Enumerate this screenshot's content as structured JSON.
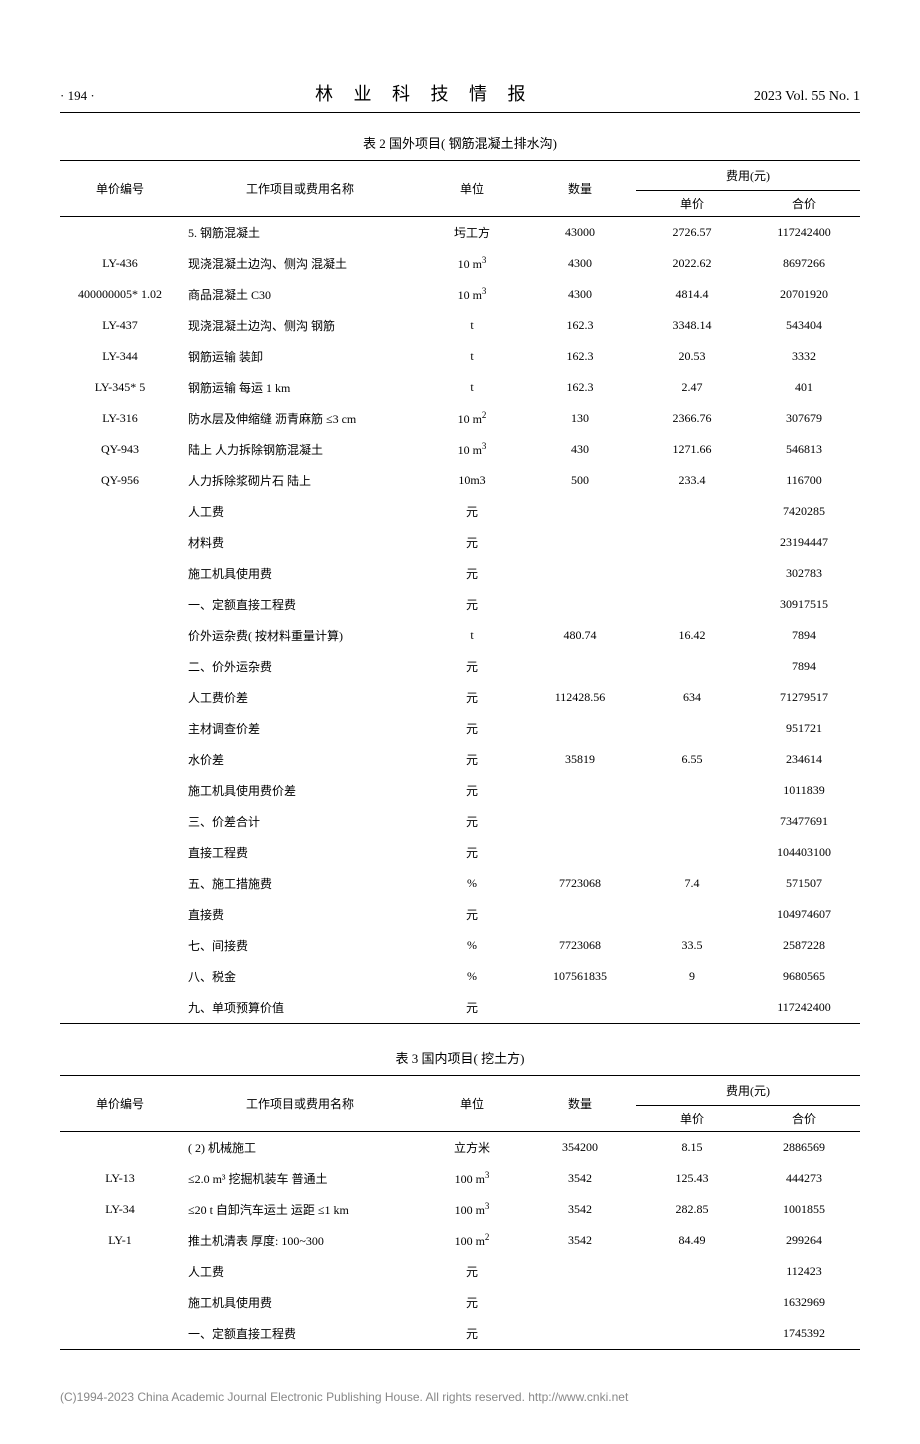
{
  "header": {
    "page_num": "· 194 ·",
    "journal_title": "林 业 科 技 情 报",
    "issue_info": "2023 Vol. 55 No. 1"
  },
  "table2": {
    "caption": "表 2  国外项目( 钢筋混凝土排水沟)",
    "headers": {
      "code": "单价编号",
      "name": "工作项目或费用名称",
      "unit": "单位",
      "qty": "数量",
      "cost_group": "费用(元)",
      "unit_price": "单价",
      "total": "合价"
    },
    "rows": [
      {
        "code": "",
        "name": "5. 钢筋混凝土",
        "unit": "圬工方",
        "qty": "43000",
        "price": "2726.57",
        "total": "117242400"
      },
      {
        "code": "LY-436",
        "name": "现浇混凝土边沟、侧沟 混凝土",
        "unit": "10 m³",
        "qty": "4300",
        "price": "2022.62",
        "total": "8697266"
      },
      {
        "code": "400000005* 1.02",
        "name": "商品混凝土 C30",
        "unit": "10 m³",
        "qty": "4300",
        "price": "4814.4",
        "total": "20701920"
      },
      {
        "code": "LY-437",
        "name": "现浇混凝土边沟、侧沟 钢筋",
        "unit": "t",
        "qty": "162.3",
        "price": "3348.14",
        "total": "543404"
      },
      {
        "code": "LY-344",
        "name": "钢筋运输 装卸",
        "unit": "t",
        "qty": "162.3",
        "price": "20.53",
        "total": "3332"
      },
      {
        "code": "LY-345* 5",
        "name": "钢筋运输 每运 1 km",
        "unit": "t",
        "qty": "162.3",
        "price": "2.47",
        "total": "401"
      },
      {
        "code": "LY-316",
        "name": "防水层及伸缩缝 沥青麻筋 ≤3 cm",
        "unit": "10 m²",
        "qty": "130",
        "price": "2366.76",
        "total": "307679"
      },
      {
        "code": "QY-943",
        "name": "陆上 人力拆除钢筋混凝土",
        "unit": "10 m³",
        "qty": "430",
        "price": "1271.66",
        "total": "546813"
      },
      {
        "code": "QY-956",
        "name": "人力拆除浆砌片石 陆上",
        "unit": "10m3",
        "qty": "500",
        "price": "233.4",
        "total": "116700"
      },
      {
        "code": "",
        "name": "人工费",
        "unit": "元",
        "qty": "",
        "price": "",
        "total": "7420285"
      },
      {
        "code": "",
        "name": "材料费",
        "unit": "元",
        "qty": "",
        "price": "",
        "total": "23194447"
      },
      {
        "code": "",
        "name": "施工机具使用费",
        "unit": "元",
        "qty": "",
        "price": "",
        "total": "302783"
      },
      {
        "code": "",
        "name": "一、定额直接工程费",
        "unit": "元",
        "qty": "",
        "price": "",
        "total": "30917515"
      },
      {
        "code": "",
        "name": "价外运杂费( 按材料重量计算)",
        "unit": "t",
        "qty": "480.74",
        "price": "16.42",
        "total": "7894"
      },
      {
        "code": "",
        "name": "二、价外运杂费",
        "unit": "元",
        "qty": "",
        "price": "",
        "total": "7894"
      },
      {
        "code": "",
        "name": "人工费价差",
        "unit": "元",
        "qty": "112428.56",
        "price": "634",
        "total": "71279517"
      },
      {
        "code": "",
        "name": "主材调查价差",
        "unit": "元",
        "qty": "",
        "price": "",
        "total": "951721"
      },
      {
        "code": "",
        "name": "水价差",
        "unit": "元",
        "qty": "35819",
        "price": "6.55",
        "total": "234614"
      },
      {
        "code": "",
        "name": "施工机具使用费价差",
        "unit": "元",
        "qty": "",
        "price": "",
        "total": "1011839"
      },
      {
        "code": "",
        "name": "三、价差合计",
        "unit": "元",
        "qty": "",
        "price": "",
        "total": "73477691"
      },
      {
        "code": "",
        "name": "直接工程费",
        "unit": "元",
        "qty": "",
        "price": "",
        "total": "104403100"
      },
      {
        "code": "",
        "name": "五、施工措施费",
        "unit": "%",
        "qty": "7723068",
        "price": "7.4",
        "total": "571507"
      },
      {
        "code": "",
        "name": "直接费",
        "unit": "元",
        "qty": "",
        "price": "",
        "total": "104974607"
      },
      {
        "code": "",
        "name": "七、间接费",
        "unit": "%",
        "qty": "7723068",
        "price": "33.5",
        "total": "2587228"
      },
      {
        "code": "",
        "name": "八、税金",
        "unit": "%",
        "qty": "107561835",
        "price": "9",
        "total": "9680565"
      },
      {
        "code": "",
        "name": "九、单项预算价值",
        "unit": "元",
        "qty": "",
        "price": "",
        "total": "117242400"
      }
    ]
  },
  "table3": {
    "caption": "表 3  国内项目( 挖土方)",
    "headers": {
      "code": "单价编号",
      "name": "工作项目或费用名称",
      "unit": "单位",
      "qty": "数量",
      "cost_group": "费用(元)",
      "unit_price": "单价",
      "total": "合价"
    },
    "rows": [
      {
        "code": "",
        "name": "( 2) 机械施工",
        "unit": "立方米",
        "qty": "354200",
        "price": "8.15",
        "total": "2886569"
      },
      {
        "code": "LY-13",
        "name": "≤2.0 m³ 挖掘机装车 普通土",
        "unit": "100 m³",
        "qty": "3542",
        "price": "125.43",
        "total": "444273"
      },
      {
        "code": "LY-34",
        "name": "≤20 t 自卸汽车运土 运距 ≤1 km",
        "unit": "100 m³",
        "qty": "3542",
        "price": "282.85",
        "total": "1001855"
      },
      {
        "code": "LY-1",
        "name": "推土机清表 厚度: 100~300",
        "unit": "100 m²",
        "qty": "3542",
        "price": "84.49",
        "total": "299264"
      },
      {
        "code": "",
        "name": "人工费",
        "unit": "元",
        "qty": "",
        "price": "",
        "total": "112423"
      },
      {
        "code": "",
        "name": "施工机具使用费",
        "unit": "元",
        "qty": "",
        "price": "",
        "total": "1632969"
      },
      {
        "code": "",
        "name": "一、定额直接工程费",
        "unit": "元",
        "qty": "",
        "price": "",
        "total": "1745392"
      }
    ]
  },
  "footer": "(C)1994-2023 China Academic Journal Electronic Publishing House. All rights reserved.    http://www.cnki.net"
}
